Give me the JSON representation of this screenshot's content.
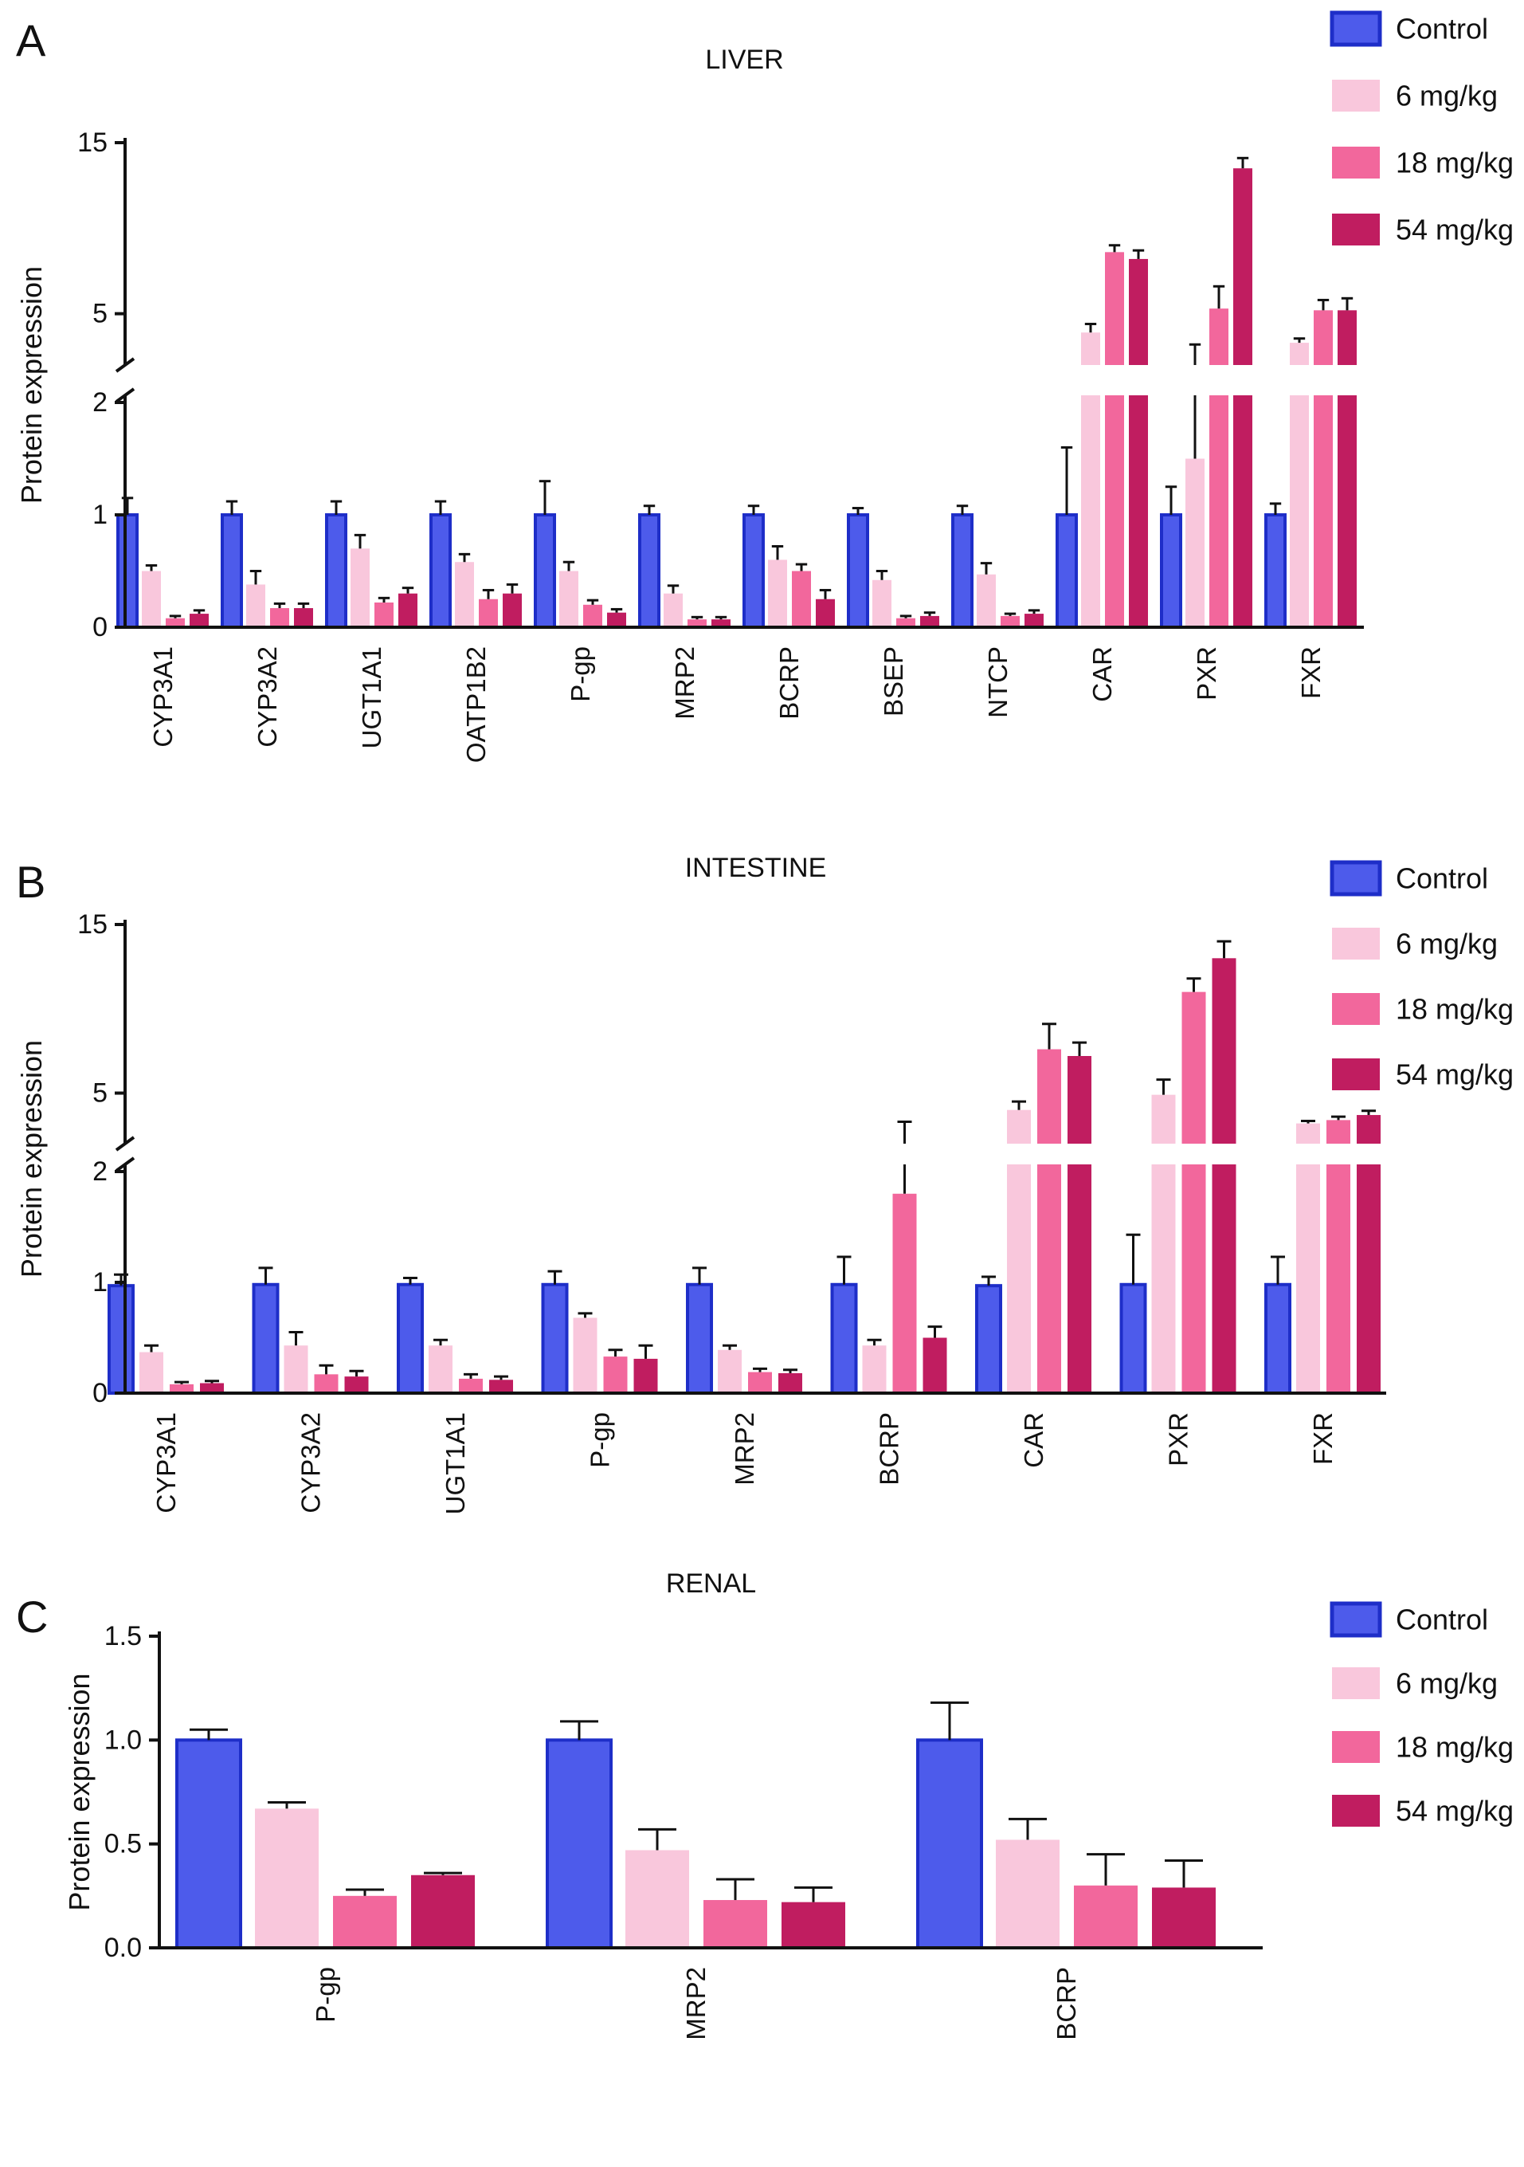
{
  "legend": {
    "entries": [
      "Control",
      "6 mg/kg",
      "18 mg/kg",
      "54 mg/kg"
    ]
  },
  "colors": {
    "control_fill": "#4d5beb",
    "control_border": "#1e2ec8",
    "dose6_fill": "#f9c7dc",
    "dose18_fill": "#f2679c",
    "dose54_fill": "#c01d60",
    "error_bar": "#111111",
    "axis": "#111111",
    "background": "#ffffff"
  },
  "chart_data": {
    "type": "bar",
    "panels": [
      {
        "id": "A",
        "label": "A",
        "title": "LIVER",
        "ylabel": "Protein expression",
        "axis": {
          "broken": true,
          "ylim": [
            0,
            15
          ],
          "ticks": [
            {
              "v": 0,
              "t": "0"
            },
            {
              "v": 1,
              "t": "1"
            },
            {
              "v": 2,
              "t": "2"
            },
            {
              "v": 5,
              "t": "5"
            },
            {
              "v": 15,
              "t": "15"
            }
          ]
        },
        "categories": [
          "CYP3A1",
          "CYP3A2",
          "UGT1A1",
          "OATP1B2",
          "P-gp",
          "MRP2",
          "BCRP",
          "BSEP",
          "NTCP",
          "CAR",
          "PXR",
          "FXR"
        ],
        "series": [
          {
            "name": "Control",
            "values": [
              1.0,
              1.0,
              1.0,
              1.0,
              1.0,
              1.0,
              1.0,
              1.0,
              1.0,
              1.0,
              1.0,
              1.0
            ],
            "errors": [
              0.15,
              0.12,
              0.12,
              0.12,
              0.3,
              0.08,
              0.08,
              0.06,
              0.08,
              0.6,
              0.25,
              0.1
            ]
          },
          {
            "name": "6 mg/kg",
            "values": [
              0.5,
              0.38,
              0.7,
              0.58,
              0.5,
              0.3,
              0.6,
              0.42,
              0.47,
              3.9,
              1.5,
              3.3
            ],
            "errors": [
              0.05,
              0.12,
              0.12,
              0.07,
              0.08,
              0.07,
              0.12,
              0.08,
              0.1,
              0.5,
              1.7,
              0.25
            ]
          },
          {
            "name": "18 mg/kg",
            "values": [
              0.08,
              0.17,
              0.22,
              0.25,
              0.2,
              0.07,
              0.5,
              0.08,
              0.1,
              8.6,
              5.3,
              5.2
            ],
            "errors": [
              0.02,
              0.04,
              0.04,
              0.08,
              0.04,
              0.02,
              0.06,
              0.02,
              0.02,
              0.4,
              1.3,
              0.6
            ]
          },
          {
            "name": "54 mg/kg",
            "values": [
              0.12,
              0.17,
              0.3,
              0.3,
              0.13,
              0.07,
              0.25,
              0.1,
              0.12,
              8.2,
              13.5,
              5.2
            ],
            "errors": [
              0.03,
              0.04,
              0.05,
              0.08,
              0.03,
              0.02,
              0.08,
              0.03,
              0.03,
              0.5,
              0.6,
              0.7
            ]
          }
        ]
      },
      {
        "id": "B",
        "label": "B",
        "title": "INTESTINE",
        "ylabel": "Protein expression",
        "axis": {
          "broken": true,
          "ylim": [
            0,
            15
          ],
          "ticks": [
            {
              "v": 0,
              "t": "0"
            },
            {
              "v": 1,
              "t": "1"
            },
            {
              "v": 2,
              "t": "2"
            },
            {
              "v": 5,
              "t": "5"
            },
            {
              "v": 15,
              "t": "15"
            }
          ]
        },
        "categories": [
          "CYP3A1",
          "CYP3A2",
          "UGT1A1",
          "P-gp",
          "MRP2",
          "BCRP",
          "CAR",
          "PXR",
          "FXR"
        ],
        "series": [
          {
            "name": "Control",
            "values": [
              0.97,
              0.98,
              0.98,
              0.98,
              0.98,
              0.98,
              0.97,
              0.98,
              0.98
            ],
            "errors": [
              0.1,
              0.15,
              0.06,
              0.12,
              0.15,
              0.25,
              0.08,
              0.45,
              0.25
            ]
          },
          {
            "name": "6 mg/kg",
            "values": [
              0.37,
              0.43,
              0.43,
              0.68,
              0.39,
              0.43,
              4.0,
              4.9,
              3.2
            ],
            "errors": [
              0.06,
              0.12,
              0.05,
              0.04,
              0.04,
              0.05,
              0.5,
              0.9,
              0.15
            ]
          },
          {
            "name": "18 mg/kg",
            "values": [
              0.08,
              0.17,
              0.13,
              0.33,
              0.19,
              1.8,
              7.6,
              11.0,
              3.4
            ],
            "errors": [
              0.02,
              0.08,
              0.04,
              0.06,
              0.03,
              1.5,
              1.5,
              0.8,
              0.2
            ]
          },
          {
            "name": "54 mg/kg",
            "values": [
              0.09,
              0.15,
              0.12,
              0.31,
              0.18,
              0.5,
              7.2,
              13.0,
              3.7
            ],
            "errors": [
              0.02,
              0.05,
              0.03,
              0.12,
              0.03,
              0.1,
              0.8,
              1.0,
              0.25
            ]
          }
        ]
      },
      {
        "id": "C",
        "label": "C",
        "title": "RENAL",
        "ylabel": "Protein expression",
        "axis": {
          "broken": false,
          "ylim": [
            0,
            1.5
          ],
          "ticks": [
            {
              "v": 0,
              "t": "0.0"
            },
            {
              "v": 0.5,
              "t": "0.5"
            },
            {
              "v": 1.0,
              "t": "1.0"
            },
            {
              "v": 1.5,
              "t": "1.5"
            }
          ]
        },
        "categories": [
          "P-gp",
          "MRP2",
          "BCRP"
        ],
        "series": [
          {
            "name": "Control",
            "values": [
              1.0,
              1.0,
              1.0
            ],
            "errors": [
              0.05,
              0.09,
              0.18
            ]
          },
          {
            "name": "6 mg/kg",
            "values": [
              0.67,
              0.47,
              0.52
            ],
            "errors": [
              0.03,
              0.1,
              0.1
            ]
          },
          {
            "name": "18 mg/kg",
            "values": [
              0.25,
              0.23,
              0.3
            ],
            "errors": [
              0.03,
              0.1,
              0.15
            ]
          },
          {
            "name": "54 mg/kg",
            "values": [
              0.35,
              0.22,
              0.29
            ],
            "errors": [
              0.01,
              0.07,
              0.13
            ]
          }
        ]
      }
    ]
  }
}
